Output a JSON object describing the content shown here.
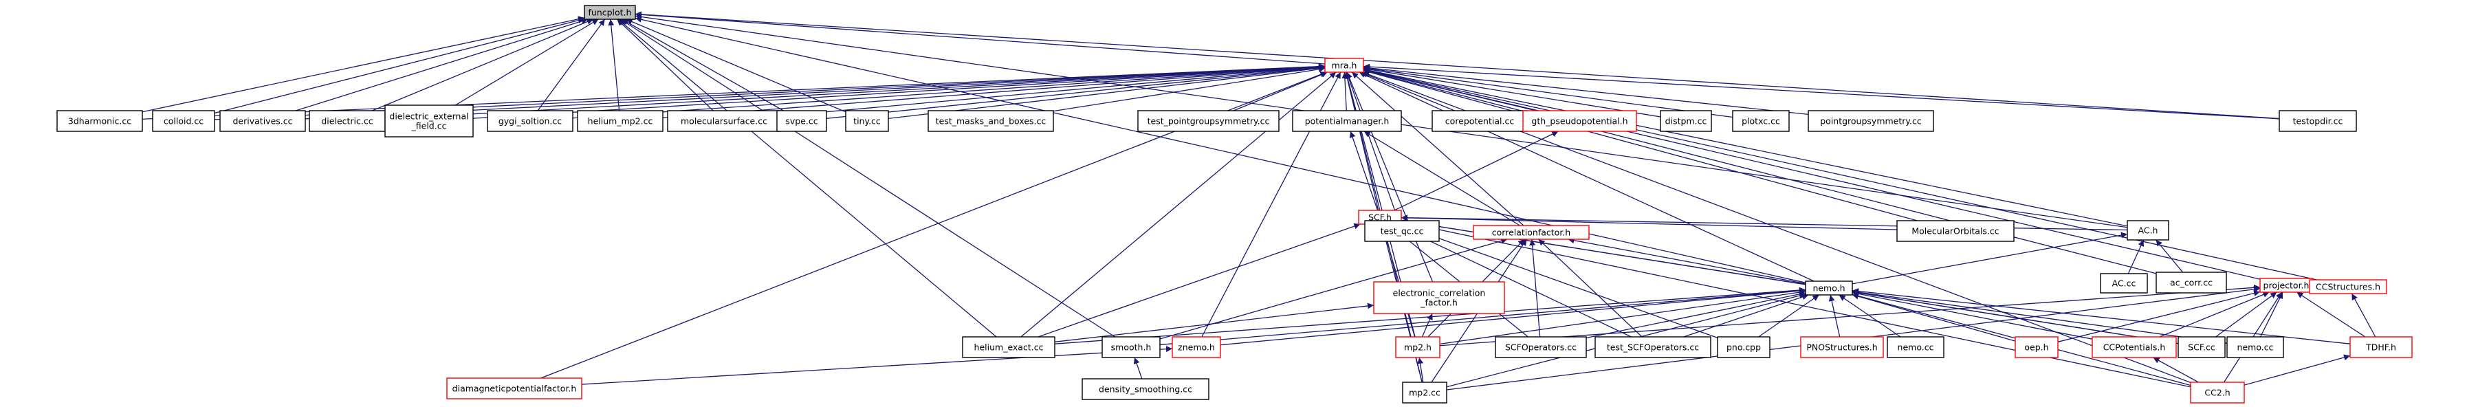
{
  "colors": {
    "edge": "#191970",
    "node_border": "#000000",
    "node_border_red": "#ff0000",
    "root_fill": "#bfbfbf",
    "node_fill": "#ffffff"
  },
  "nodes": [
    {
      "id": "funcplot",
      "label": [
        "funcplot.h"
      ],
      "kind": "root"
    },
    {
      "id": "mra",
      "label": [
        "mra.h"
      ],
      "kind": "red"
    },
    {
      "id": "harmonic3d",
      "label": [
        "3dharmonic.cc"
      ],
      "kind": "black"
    },
    {
      "id": "colloid",
      "label": [
        "colloid.cc"
      ],
      "kind": "black"
    },
    {
      "id": "derivatives",
      "label": [
        "derivatives.cc"
      ],
      "kind": "black"
    },
    {
      "id": "dielectric",
      "label": [
        "dielectric.cc"
      ],
      "kind": "black"
    },
    {
      "id": "dielectric_ext",
      "label": [
        "dielectric_external",
        "_field.cc"
      ],
      "kind": "black"
    },
    {
      "id": "gygi",
      "label": [
        "gygi_soltion.cc"
      ],
      "kind": "black"
    },
    {
      "id": "helium_mp2",
      "label": [
        "helium_mp2.cc"
      ],
      "kind": "black"
    },
    {
      "id": "molsurf",
      "label": [
        "molecularsurface.cc"
      ],
      "kind": "black"
    },
    {
      "id": "svpe",
      "label": [
        "svpe.cc"
      ],
      "kind": "black"
    },
    {
      "id": "tiny",
      "label": [
        "tiny.cc"
      ],
      "kind": "black"
    },
    {
      "id": "test_masks",
      "label": [
        "test_masks_and_boxes.cc"
      ],
      "kind": "black"
    },
    {
      "id": "test_pgs",
      "label": [
        "test_pointgroupsymmetry.cc"
      ],
      "kind": "black"
    },
    {
      "id": "potmgr",
      "label": [
        "potentialmanager.h"
      ],
      "kind": "black"
    },
    {
      "id": "corepot",
      "label": [
        "corepotential.cc"
      ],
      "kind": "black"
    },
    {
      "id": "gth",
      "label": [
        "gth_pseudopotential.h"
      ],
      "kind": "red"
    },
    {
      "id": "distpm",
      "label": [
        "distpm.cc"
      ],
      "kind": "black"
    },
    {
      "id": "plotxc",
      "label": [
        "plotxc.cc"
      ],
      "kind": "black"
    },
    {
      "id": "pgs",
      "label": [
        "pointgroupsymmetry.cc"
      ],
      "kind": "black"
    },
    {
      "id": "testopdir",
      "label": [
        "testopdir.cc"
      ],
      "kind": "black"
    },
    {
      "id": "scfh",
      "label": [
        "SCF.h"
      ],
      "kind": "red"
    },
    {
      "id": "test_qc",
      "label": [
        "test_qc.cc"
      ],
      "kind": "black"
    },
    {
      "id": "corrfac",
      "label": [
        "correlationfactor.h"
      ],
      "kind": "red"
    },
    {
      "id": "molorb",
      "label": [
        "MolecularOrbitals.cc"
      ],
      "kind": "black"
    },
    {
      "id": "ach",
      "label": [
        "AC.h"
      ],
      "kind": "black"
    },
    {
      "id": "nemoh",
      "label": [
        "nemo.h"
      ],
      "kind": "black"
    },
    {
      "id": "elcorr",
      "label": [
        "electronic_correlation",
        "_factor.h"
      ],
      "kind": "red"
    },
    {
      "id": "accc",
      "label": [
        "AC.cc"
      ],
      "kind": "black"
    },
    {
      "id": "accorr",
      "label": [
        "ac_corr.cc"
      ],
      "kind": "black"
    },
    {
      "id": "projector",
      "label": [
        "projector.h"
      ],
      "kind": "red"
    },
    {
      "id": "ccstruct",
      "label": [
        "CCStructures.h"
      ],
      "kind": "red"
    },
    {
      "id": "helium_exact",
      "label": [
        "helium_exact.cc"
      ],
      "kind": "black"
    },
    {
      "id": "smooth",
      "label": [
        "smooth.h"
      ],
      "kind": "black"
    },
    {
      "id": "znemo",
      "label": [
        "znemo.h"
      ],
      "kind": "red"
    },
    {
      "id": "mp2h",
      "label": [
        "mp2.h"
      ],
      "kind": "red"
    },
    {
      "id": "scfops",
      "label": [
        "SCFOperators.cc"
      ],
      "kind": "black"
    },
    {
      "id": "test_scfops",
      "label": [
        "test_SCFOperators.cc"
      ],
      "kind": "black"
    },
    {
      "id": "pno",
      "label": [
        "pno.cpp"
      ],
      "kind": "black"
    },
    {
      "id": "pnostruct",
      "label": [
        "PNOStructures.h"
      ],
      "kind": "red"
    },
    {
      "id": "nemocc1",
      "label": [
        "nemo.cc"
      ],
      "kind": "black"
    },
    {
      "id": "oeph",
      "label": [
        "oep.h"
      ],
      "kind": "red"
    },
    {
      "id": "ccpot",
      "label": [
        "CCPotentials.h"
      ],
      "kind": "red"
    },
    {
      "id": "scfcc",
      "label": [
        "SCF.cc"
      ],
      "kind": "black"
    },
    {
      "id": "nemocc2",
      "label": [
        "nemo.cc"
      ],
      "kind": "black"
    },
    {
      "id": "tdhf",
      "label": [
        "TDHF.h"
      ],
      "kind": "red"
    },
    {
      "id": "diamag",
      "label": [
        "diamagneticpotentialfactor.h"
      ],
      "kind": "red"
    },
    {
      "id": "densmooth",
      "label": [
        "density_smoothing.cc"
      ],
      "kind": "black"
    },
    {
      "id": "mp2cc",
      "label": [
        "mp2.cc"
      ],
      "kind": "black"
    },
    {
      "id": "cc2h",
      "label": [
        "CC2.h"
      ],
      "kind": "red"
    }
  ],
  "edges": [
    [
      "mra",
      "funcplot"
    ],
    [
      "harmonic3d",
      "funcplot"
    ],
    [
      "colloid",
      "funcplot"
    ],
    [
      "derivatives",
      "funcplot"
    ],
    [
      "dielectric",
      "funcplot"
    ],
    [
      "dielectric_ext",
      "funcplot"
    ],
    [
      "gygi",
      "funcplot"
    ],
    [
      "helium_mp2",
      "funcplot"
    ],
    [
      "molsurf",
      "funcplot"
    ],
    [
      "svpe",
      "funcplot"
    ],
    [
      "tiny",
      "funcplot"
    ],
    [
      "testopdir",
      "funcplot"
    ],
    [
      "ach",
      "funcplot"
    ],
    [
      "nemoh",
      "funcplot"
    ],
    [
      "helium_exact",
      "funcplot"
    ],
    [
      "smooth",
      "funcplot"
    ],
    [
      "harmonic3d",
      "mra"
    ],
    [
      "colloid",
      "mra"
    ],
    [
      "derivatives",
      "mra"
    ],
    [
      "dielectric",
      "mra"
    ],
    [
      "dielectric_ext",
      "mra"
    ],
    [
      "gygi",
      "mra"
    ],
    [
      "helium_mp2",
      "mra"
    ],
    [
      "molsurf",
      "mra"
    ],
    [
      "svpe",
      "mra"
    ],
    [
      "tiny",
      "mra"
    ],
    [
      "test_masks",
      "mra"
    ],
    [
      "test_pgs",
      "mra"
    ],
    [
      "potmgr",
      "mra"
    ],
    [
      "corepot",
      "mra"
    ],
    [
      "gth",
      "mra"
    ],
    [
      "distpm",
      "mra"
    ],
    [
      "plotxc",
      "mra"
    ],
    [
      "pgs",
      "mra"
    ],
    [
      "testopdir",
      "mra"
    ],
    [
      "scfh",
      "mra"
    ],
    [
      "test_qc",
      "mra"
    ],
    [
      "corrfac",
      "mra"
    ],
    [
      "molorb",
      "mra"
    ],
    [
      "ach",
      "mra"
    ],
    [
      "nemoh",
      "mra"
    ],
    [
      "elcorr",
      "mra"
    ],
    [
      "accorr",
      "mra"
    ],
    [
      "projector",
      "mra"
    ],
    [
      "ccstruct",
      "mra"
    ],
    [
      "helium_exact",
      "mra"
    ],
    [
      "znemo",
      "mra"
    ],
    [
      "mp2h",
      "mra"
    ],
    [
      "mp2cc",
      "mra"
    ],
    [
      "diamag",
      "mra"
    ],
    [
      "cc2h",
      "mra"
    ],
    [
      "scfh",
      "potmgr"
    ],
    [
      "corrfac",
      "potmgr"
    ],
    [
      "scfh",
      "gth"
    ],
    [
      "test_qc",
      "scfh"
    ],
    [
      "molorb",
      "scfh"
    ],
    [
      "ach",
      "scfh"
    ],
    [
      "nemoh",
      "scfh"
    ],
    [
      "mp2h",
      "scfh"
    ],
    [
      "scfops",
      "scfh"
    ],
    [
      "test_scfops",
      "scfh"
    ],
    [
      "pno",
      "scfh"
    ],
    [
      "scfcc",
      "scfh"
    ],
    [
      "mp2cc",
      "scfh"
    ],
    [
      "helium_exact",
      "scfh"
    ],
    [
      "cc2h",
      "scfh"
    ],
    [
      "nemoh",
      "corrfac"
    ],
    [
      "mp2h",
      "corrfac"
    ],
    [
      "scfops",
      "corrfac"
    ],
    [
      "test_scfops",
      "corrfac"
    ],
    [
      "mp2cc",
      "corrfac"
    ],
    [
      "smooth",
      "corrfac"
    ],
    [
      "helium_exact",
      "elcorr"
    ],
    [
      "mp2h",
      "elcorr"
    ],
    [
      "accc",
      "ach"
    ],
    [
      "accorr",
      "ach"
    ],
    [
      "nemoh",
      "ach"
    ],
    [
      "helium_exact",
      "nemoh"
    ],
    [
      "smooth",
      "nemoh"
    ],
    [
      "znemo",
      "nemoh"
    ],
    [
      "mp2h",
      "nemoh"
    ],
    [
      "scfops",
      "nemoh"
    ],
    [
      "test_scfops",
      "nemoh"
    ],
    [
      "pno",
      "nemoh"
    ],
    [
      "pnostruct",
      "nemoh"
    ],
    [
      "nemocc1",
      "nemoh"
    ],
    [
      "oeph",
      "nemoh"
    ],
    [
      "ccpot",
      "nemoh"
    ],
    [
      "scfcc",
      "nemoh"
    ],
    [
      "nemocc2",
      "nemoh"
    ],
    [
      "tdhf",
      "nemoh"
    ],
    [
      "mp2cc",
      "nemoh"
    ],
    [
      "cc2h",
      "nemoh"
    ],
    [
      "mp2h",
      "projector"
    ],
    [
      "oeph",
      "projector"
    ],
    [
      "ccpot",
      "projector"
    ],
    [
      "scfcc",
      "projector"
    ],
    [
      "nemocc2",
      "projector"
    ],
    [
      "tdhf",
      "projector"
    ],
    [
      "cc2h",
      "projector"
    ],
    [
      "mp2cc",
      "projector"
    ],
    [
      "tdhf",
      "ccstruct"
    ],
    [
      "cc2h",
      "ccpot"
    ],
    [
      "cc2h",
      "tdhf"
    ],
    [
      "densmooth",
      "smooth"
    ],
    [
      "diamag",
      "znemo"
    ],
    [
      "mp2cc",
      "mp2h"
    ]
  ]
}
